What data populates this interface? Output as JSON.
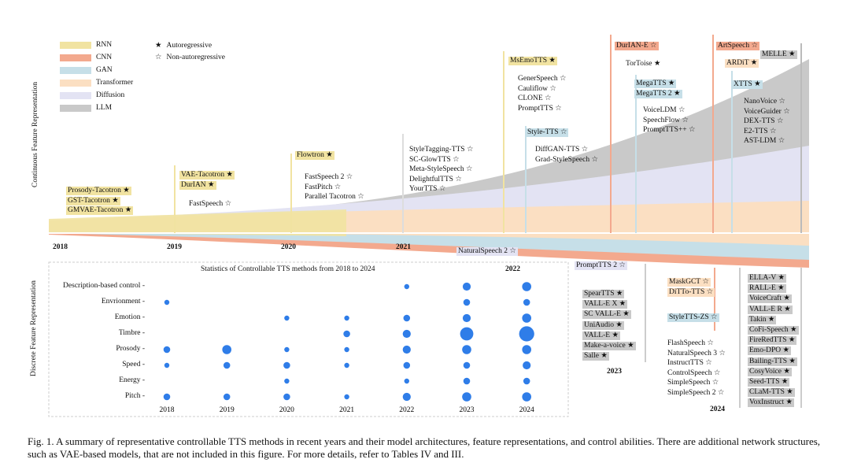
{
  "caption": "Fig. 1.  A summary of representative controllable TTS methods in recent years and their model architectures, feature representations, and control abilities. There are additional network structures, such as VAE-based models, that are not included in this figure. For more details, refer to Tables IV and III.",
  "axis_labels": {
    "continuous": "Continuous Feature Representation",
    "discrete": "Discrete Feature Representation"
  },
  "legend": {
    "architectures": [
      {
        "label": "RNN",
        "color": "#f1e3a1"
      },
      {
        "label": "CNN",
        "color": "#f3a98e"
      },
      {
        "label": "GAN",
        "color": "#c6dfe8"
      },
      {
        "label": "Transformer",
        "color": "#fbdfc2"
      },
      {
        "label": "Diffusion",
        "color": "#e3e3f3"
      },
      {
        "label": "LLM",
        "color": "#c9c9c9"
      }
    ],
    "autoregressive": "Autoregressive",
    "non_autoregressive": "Non-autoregressive",
    "star_filled": "★",
    "star_open": "☆"
  },
  "timeline_years": [
    "2018",
    "2019",
    "2020",
    "2021",
    "2022",
    "2023",
    "2024"
  ],
  "models": {
    "m2018": [
      "Prosody-Tacotron ★",
      "GST-Tacotron ★",
      "GMVAE-Tacotron ★"
    ],
    "m2019a": [
      "VAE-Tacotron ★",
      "DurIAN ★"
    ],
    "m2019b": "FastSpeech ☆",
    "m2020a": "Flowtron ★",
    "m2020b": [
      "FastSpeech 2 ☆",
      "FastPitch ☆",
      "Parallel Tacotron ☆"
    ],
    "m2021": [
      "StyleTagging-TTS ☆",
      "SC-GlowTTS ☆",
      "Meta-StyleSpeech ☆",
      "DelightfulTTS ☆",
      "YourTTS ☆"
    ],
    "ms_emo": "MsEmoTTS ★",
    "m2022a": [
      "GenerSpeech ☆",
      "Cauliflow ☆",
      "CLONE ☆",
      "PromptTTS ☆"
    ],
    "style_tts": "Style-TTS ☆",
    "m2022b": [
      "DiffGAN-TTS ☆",
      "Grad-StyleSpeech ☆"
    ],
    "natural_speech": "NaturalSpeech 2 ☆",
    "prompt_tts2": "PromptTTS 2 ☆",
    "dur_ian_e": "DurIAN-E ☆",
    "tortoise": "TorToise ★",
    "m2023c": [
      "MegaTTS ★",
      "MegaTTS 2 ★"
    ],
    "m2023d": [
      "VoiceLDM ☆",
      "SpeechFlow ☆",
      "PromptTTS++ ☆"
    ],
    "m2023disc": [
      "SpearTTS ★",
      "VALL-E X ★",
      "SC VALL-E ★",
      "UniAudio ★",
      "VALL-E ★",
      "Make-a-voice ★",
      "Salle ★"
    ],
    "art_speech": "ArtSpeech ☆",
    "ardit": "ARDiT ★",
    "melle": "MELLE ★",
    "xtts": "XTTS ★",
    "m2024a": [
      "NanoVoice ☆",
      "VoiceGuider ☆",
      "DEX-TTS ☆",
      "E2-TTS ☆",
      "AST-LDM ☆"
    ],
    "m2024b": [
      "MaskGCT ☆",
      "DiTTo-TTS ☆"
    ],
    "style_tts_zs": "StyleTTS-ZS ☆",
    "m2024c": [
      "FlashSpeech ☆",
      "NaturalSpeech 3 ☆",
      "InstructTTS ☆",
      "ControlSpeech ☆",
      "SimpleSpeech ☆",
      "SimpleSpeech 2 ☆"
    ],
    "m2024d": [
      "ELLA-V ★",
      "RALL-E ★",
      "VoiceCraft ★",
      "VALL-E R ★",
      "Takin ★",
      "CoFi-Speech ★",
      "FireRedTTS ★",
      "Emo-DPO ★",
      "Bailing-TTS ★",
      "CosyVoice ★",
      "Seed-TTS ★",
      "CLaM-TTS ★",
      "VoxInstruct ★"
    ]
  },
  "chart_data": {
    "type": "scatter",
    "title": "Statistics of Controllable TTS methods from 2018 to 2024",
    "x": [
      "2018",
      "2019",
      "2020",
      "2021",
      "2022",
      "2023",
      "2024"
    ],
    "categories": [
      "Description-based control",
      "Envrionment",
      "Emotion",
      "Timbre",
      "Prosody",
      "Speed",
      "Energy",
      "Pitch"
    ],
    "values": [
      [
        0,
        0,
        0,
        0,
        1,
        3,
        4
      ],
      [
        1,
        0,
        0,
        0,
        0,
        2,
        2
      ],
      [
        0,
        0,
        1,
        1,
        2,
        3,
        4
      ],
      [
        0,
        0,
        0,
        2,
        3,
        9,
        12
      ],
      [
        2,
        4,
        1,
        1,
        3,
        4,
        4
      ],
      [
        1,
        2,
        2,
        1,
        2,
        2,
        3
      ],
      [
        0,
        0,
        1,
        0,
        1,
        2,
        2
      ],
      [
        2,
        2,
        2,
        1,
        3,
        4,
        4
      ]
    ],
    "marker_color": "#2f7de8"
  }
}
